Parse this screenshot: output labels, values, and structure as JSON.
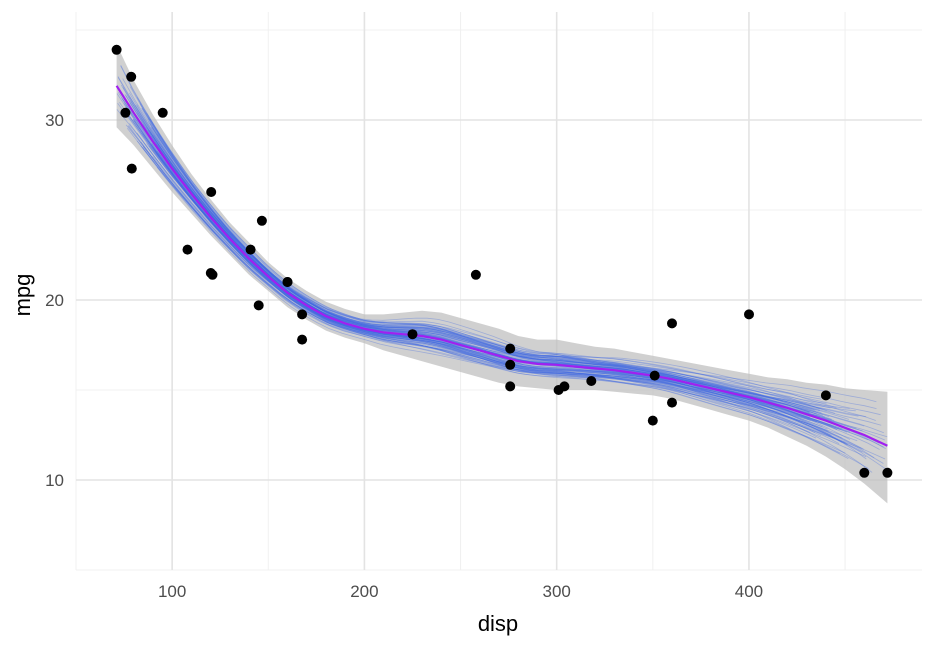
{
  "chart_data": {
    "type": "scatter",
    "title": "",
    "xlabel": "disp",
    "ylabel": "mpg",
    "xlim": [
      50,
      490
    ],
    "ylim": [
      5,
      36
    ],
    "x_ticks": [
      100,
      200,
      300,
      400
    ],
    "y_ticks": [
      10,
      20,
      30
    ],
    "grid": true,
    "legend": "none",
    "colors": {
      "points": "#000000",
      "smooth": "#a020f0",
      "band": "#bebebe",
      "bootstrap": "#4169e1",
      "grid_major": "#e3e3e3",
      "grid_minor": "#f0f0f0"
    },
    "points": [
      {
        "x": 71.1,
        "y": 33.9
      },
      {
        "x": 75.7,
        "y": 30.4
      },
      {
        "x": 78.7,
        "y": 32.4
      },
      {
        "x": 79.0,
        "y": 27.3
      },
      {
        "x": 95.1,
        "y": 30.4
      },
      {
        "x": 108.0,
        "y": 22.8
      },
      {
        "x": 120.1,
        "y": 21.5
      },
      {
        "x": 120.3,
        "y": 26.0
      },
      {
        "x": 121.0,
        "y": 21.4
      },
      {
        "x": 140.8,
        "y": 22.8
      },
      {
        "x": 145.0,
        "y": 19.7
      },
      {
        "x": 146.7,
        "y": 24.4
      },
      {
        "x": 160.0,
        "y": 21.0
      },
      {
        "x": 160.0,
        "y": 21.0
      },
      {
        "x": 167.6,
        "y": 19.2
      },
      {
        "x": 167.6,
        "y": 17.8
      },
      {
        "x": 225.0,
        "y": 18.1
      },
      {
        "x": 258.0,
        "y": 21.4
      },
      {
        "x": 275.8,
        "y": 16.4
      },
      {
        "x": 275.8,
        "y": 17.3
      },
      {
        "x": 275.8,
        "y": 15.2
      },
      {
        "x": 301.0,
        "y": 15.0
      },
      {
        "x": 304.0,
        "y": 15.2
      },
      {
        "x": 318.0,
        "y": 15.5
      },
      {
        "x": 350.0,
        "y": 13.3
      },
      {
        "x": 351.0,
        "y": 15.8
      },
      {
        "x": 360.0,
        "y": 18.7
      },
      {
        "x": 360.0,
        "y": 14.3
      },
      {
        "x": 400.0,
        "y": 19.2
      },
      {
        "x": 440.0,
        "y": 14.7
      },
      {
        "x": 460.0,
        "y": 10.4
      },
      {
        "x": 472.0,
        "y": 10.4
      }
    ],
    "smooth": {
      "x": [
        71.1,
        80,
        90,
        100,
        110,
        120,
        130,
        140,
        150,
        160,
        170,
        180,
        190,
        200,
        210,
        220,
        230,
        240,
        250,
        260,
        270,
        280,
        290,
        300,
        310,
        320,
        330,
        340,
        350,
        360,
        370,
        380,
        390,
        400,
        410,
        420,
        430,
        440,
        450,
        460,
        472
      ],
      "y": [
        31.9,
        30.4,
        28.8,
        27.3,
        25.9,
        24.6,
        23.4,
        22.3,
        21.3,
        20.4,
        19.7,
        19.1,
        18.7,
        18.4,
        18.2,
        18.1,
        18.0,
        17.8,
        17.5,
        17.2,
        16.9,
        16.6,
        16.45,
        16.4,
        16.3,
        16.2,
        16.1,
        15.95,
        15.8,
        15.6,
        15.35,
        15.1,
        14.85,
        14.6,
        14.3,
        14.0,
        13.65,
        13.3,
        12.9,
        12.5,
        11.9
      ],
      "lower": [
        29.6,
        28.6,
        27.3,
        26.0,
        24.8,
        23.6,
        22.5,
        21.4,
        20.5,
        19.6,
        18.9,
        18.3,
        17.9,
        17.6,
        17.2,
        16.9,
        16.6,
        16.3,
        16.0,
        15.7,
        15.4,
        15.2,
        15.1,
        15.0,
        15.0,
        15.0,
        14.9,
        14.8,
        14.7,
        14.5,
        14.2,
        13.9,
        13.6,
        13.3,
        12.9,
        12.4,
        11.9,
        11.3,
        10.6,
        9.8,
        8.7
      ],
      "upper": [
        34.2,
        32.2,
        30.3,
        28.6,
        27.0,
        25.6,
        24.3,
        23.2,
        22.1,
        21.2,
        20.5,
        19.9,
        19.5,
        19.2,
        19.2,
        19.3,
        19.4,
        19.3,
        19.0,
        18.7,
        18.4,
        18.0,
        17.8,
        17.8,
        17.6,
        17.4,
        17.3,
        17.1,
        16.9,
        16.7,
        16.5,
        16.3,
        16.1,
        15.9,
        15.7,
        15.6,
        15.4,
        15.3,
        15.1,
        15.0,
        14.9
      ]
    },
    "bootstrap_count": 90
  }
}
